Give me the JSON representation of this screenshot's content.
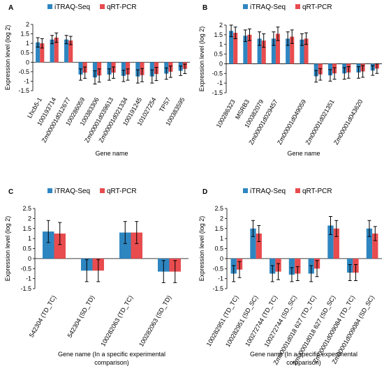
{
  "figure": {
    "legend": [
      "iTRAQ-Seq",
      "qRT-PCR"
    ],
    "colors": {
      "iTRAQ-Seq": "#2e86c1",
      "qRT-PCR": "#e84c4f"
    }
  },
  "chart_data": [
    {
      "panel": "A",
      "type": "bar",
      "ylabel": "Expression level (log 2)",
      "xlabel": "Gene name",
      "ylim": [
        -1.5,
        2
      ],
      "yticks": [
        2,
        1.5,
        1,
        0.5,
        0,
        -0.5,
        -1,
        -1.5
      ],
      "ytick_labels": [
        "2",
        "1.5",
        "1",
        "0.5",
        "0",
        "-0.5",
        "-1",
        "-1.5"
      ],
      "categories": [
        "Lhcb5-1",
        "100193714",
        "Zm00001d012677",
        "100286059",
        "100383306",
        "Zm00001d039613",
        "Zm00001d021334",
        "100191245",
        "101027254",
        "TPS7",
        "100383595"
      ],
      "series": [
        {
          "name": "iTRAQ-Seq",
          "values": [
            1.05,
            1.2,
            1.2,
            -0.65,
            -0.8,
            -0.65,
            -0.72,
            -0.75,
            -0.75,
            -0.6,
            -0.45
          ],
          "errors": [
            0.25,
            0.22,
            0.22,
            0.3,
            0.35,
            0.3,
            0.3,
            0.35,
            0.35,
            0.3,
            0.25
          ]
        },
        {
          "name": "qRT-PCR",
          "values": [
            1.0,
            1.3,
            1.15,
            -0.55,
            -0.7,
            -0.55,
            -0.65,
            -0.68,
            -0.62,
            -0.5,
            -0.35
          ],
          "errors": [
            0.25,
            0.25,
            0.22,
            0.3,
            0.35,
            0.3,
            0.3,
            0.35,
            0.35,
            0.3,
            0.25
          ]
        }
      ]
    },
    {
      "panel": "B",
      "type": "bar",
      "ylabel": "Expression level (log 2)",
      "xlabel": "Gene name",
      "ylim": [
        -1.5,
        2
      ],
      "yticks": [
        2,
        1.5,
        1,
        0.5,
        0,
        -0.5,
        -1,
        -1.5
      ],
      "ytick_labels": [
        "2",
        "1.5",
        "1",
        "0.5",
        "0",
        "-0.5",
        "-1",
        "-1.5"
      ],
      "categories": [
        "100286323",
        "MSRB3",
        "100382079",
        "Zm00001d029457",
        "Zm00001d049059",
        "Zm00001d021351",
        "Zm00001d043620"
      ],
      "cat_slots": [
        0,
        1,
        2,
        3,
        5,
        7,
        9
      ],
      "slot_count": 11,
      "series_by_slot": [
        {
          "name": "iTRAQ-Seq",
          "values": [
            1.7,
            1.45,
            1.3,
            1.3,
            1.3,
            1.25,
            -0.65,
            -0.6,
            -0.5,
            -0.45,
            -0.35
          ],
          "errors": [
            0.3,
            0.3,
            0.35,
            0.35,
            0.35,
            0.3,
            0.3,
            0.3,
            0.3,
            0.3,
            0.25
          ]
        },
        {
          "name": "qRT-PCR",
          "values": [
            1.6,
            1.5,
            1.2,
            1.55,
            1.4,
            1.3,
            -0.55,
            -0.5,
            -0.45,
            -0.4,
            -0.25
          ],
          "errors": [
            0.3,
            0.3,
            0.35,
            0.35,
            0.35,
            0.3,
            0.3,
            0.3,
            0.3,
            0.3,
            0.25
          ]
        }
      ]
    },
    {
      "panel": "C",
      "type": "bar",
      "ylabel": "Expression level (log 2)",
      "xlabel": "Gene name (In a specific experimental comparison)",
      "xlabel_lines": [
        "Gene name (In a specific experimental",
        "comparison)"
      ],
      "ylim": [
        -1.5,
        2.5
      ],
      "yticks": [
        2.5,
        2,
        1.5,
        1,
        0.5,
        0,
        -0.5,
        -1,
        -1.5
      ],
      "ytick_labels": [
        "2.5",
        "2",
        "1.5",
        "1",
        "0.5",
        "0",
        "-0.5",
        "-1",
        "-1.5"
      ],
      "categories": [
        "542304 (TD_TC)",
        "542304 (SD_TD)",
        "100282063 (TD_TC)",
        "100282063 (SD_TD)"
      ],
      "series": [
        {
          "name": "iTRAQ-Seq",
          "values": [
            1.35,
            -0.6,
            1.3,
            -0.65
          ],
          "errors": [
            0.55,
            0.55,
            0.55,
            0.55
          ]
        },
        {
          "name": "qRT-PCR",
          "values": [
            1.25,
            -0.6,
            1.3,
            -0.65
          ],
          "errors": [
            0.55,
            0.55,
            0.55,
            0.55
          ]
        }
      ]
    },
    {
      "panel": "D",
      "type": "bar",
      "ylabel": "Expression level (log 2)",
      "xlabel": "Gene name (In a specific experimental comparison)",
      "xlabel_lines": [
        "Gene name (In a specific experimental",
        "comparison)"
      ],
      "ylim": [
        -1.5,
        2.5
      ],
      "yticks": [
        2.5,
        2,
        1.5,
        1,
        0.5,
        0,
        -0.5,
        -1,
        -1.5
      ],
      "ytick_labels": [
        "2.5",
        "2",
        "1.5",
        "1",
        "0.5",
        "0",
        "-0.5",
        "-1",
        "-1.5"
      ],
      "categories": [
        "100282951 (TD_TC)",
        "100282951 (SD_SC)",
        "100272744 (TD_TC)",
        "100272744 (SD_SC)",
        "Zm00001d018 627 (TD_TC)",
        "Zm00001d018 627 (SD_SC)",
        "Zm00001d009084 (TD_TC)",
        "Zm00001d009084 (SD_SC)"
      ],
      "series": [
        {
          "name": "iTRAQ-Seq",
          "values": [
            -0.75,
            1.5,
            -0.75,
            -0.8,
            -0.75,
            1.65,
            -0.7,
            1.5
          ],
          "errors": [
            0.4,
            0.4,
            0.4,
            0.35,
            0.4,
            0.45,
            0.4,
            0.4
          ]
        },
        {
          "name": "qRT-PCR",
          "values": [
            -0.55,
            1.25,
            -0.65,
            -0.75,
            -0.5,
            1.5,
            -0.7,
            1.25
          ],
          "errors": [
            0.4,
            0.4,
            0.4,
            0.35,
            0.4,
            0.4,
            0.4,
            0.35
          ]
        }
      ]
    }
  ]
}
